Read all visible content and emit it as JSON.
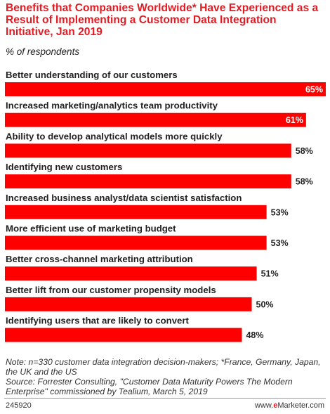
{
  "title": "Benefits that Companies Worldwide* Have Experienced as a Result of Implementing a Customer Data Integration Initiative, Jan 2019",
  "subtitle": "% of respondents",
  "chart_data": {
    "type": "bar",
    "orientation": "horizontal",
    "categories": [
      "Better understanding of our customers",
      "Increased marketing/analytics team productivity",
      "Ability to develop analytical models more quickly",
      "Identifying new customers",
      "Increased business analyst/data scientist satisfaction",
      "More efficient use of marketing budget",
      "Better cross-channel marketing attribution",
      "Better lift from our customer propensity models",
      "Identifying users that are likely to convert"
    ],
    "values": [
      65,
      61,
      58,
      58,
      53,
      53,
      51,
      50,
      48
    ],
    "value_labels": [
      "65%",
      "61%",
      "58%",
      "58%",
      "53%",
      "53%",
      "51%",
      "50%",
      "48%"
    ],
    "xlim": [
      0,
      65
    ],
    "bar_color": "#ff0000",
    "grid": false,
    "legend": "none"
  },
  "note": "Note: n=330 customer data integration decision-makers; *France, Germany, Japan, the UK and the US",
  "source": "Source: Forrester Consulting, \"Customer Data Maturity Powers The Modern Enterprise\" commissioned by Tealium, March 5, 2019",
  "footer": {
    "chart_id": "245920",
    "brand_prefix": "www.",
    "brand_mark": "e",
    "brand_rest": "Marketer.com"
  },
  "colors": {
    "accent": "#e31b23",
    "bar": "#ff0000",
    "label_inside": "#ffffff",
    "label_outside": "#222222"
  }
}
